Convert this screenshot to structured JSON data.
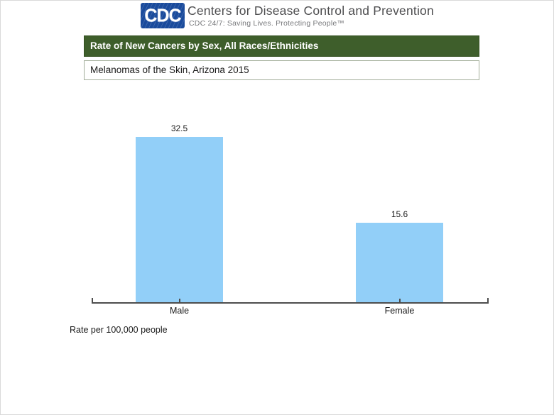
{
  "colors": {
    "bar_fill": "#92cff8",
    "title_bar_bg": "#3e5e2b",
    "title_bar_text": "#ffffff",
    "subtitle_border": "#a3ae9a",
    "logo_blue": "#1a4b9c",
    "axis": "#4d4d4d",
    "org_name_text": "#4d4d4f",
    "tagline_text": "#77787b"
  },
  "header": {
    "logo_text": "CDC",
    "org_name": "Centers for Disease Control and Prevention",
    "tagline": "CDC 24/7: Saving Lives. Protecting People™"
  },
  "title_bar": {
    "text": "Rate of New Cancers by Sex, All Races/Ethnicities"
  },
  "subtitle_box": {
    "text": "Melanomas of the Skin, Arizona 2015"
  },
  "chart_data": {
    "type": "bar",
    "categories": [
      "Male",
      "Female"
    ],
    "values": [
      32.5,
      15.6
    ],
    "value_labels": [
      "32.5",
      "15.6"
    ],
    "title": "Rate of New Cancers by Sex, All Races/Ethnicities",
    "subtitle": "Melanomas of the Skin, Arizona 2015",
    "xlabel": "",
    "ylabel": "Rate per 100,000 people",
    "ylim": [
      0,
      35
    ],
    "bar_color": "#92cff8",
    "grid": false,
    "legend": false
  },
  "footnote": {
    "text": "Rate per 100,000 people"
  }
}
